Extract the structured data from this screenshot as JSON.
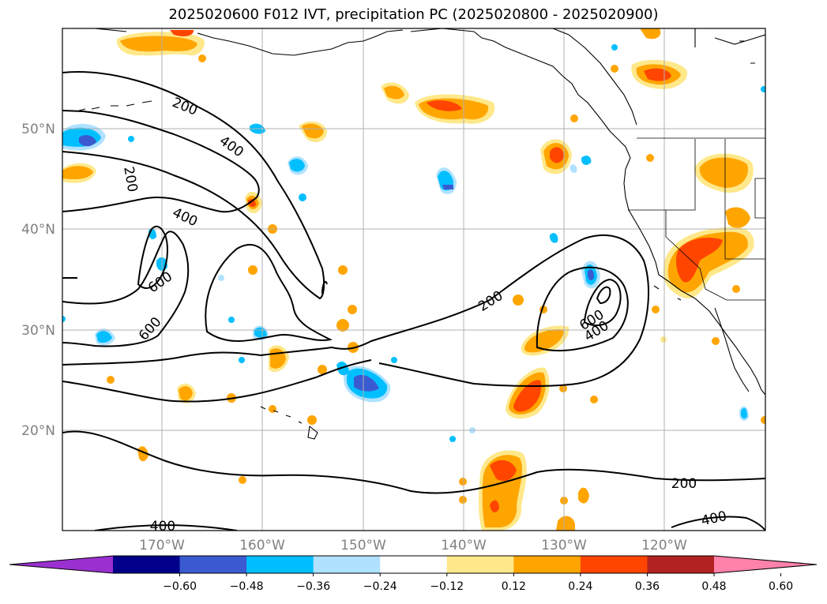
{
  "title": "2025020600 F012 IVT, precipitation PC (2025020800 - 2025020900)",
  "lat_labels": [
    "50°N",
    "40°N",
    "30°N",
    "20°N"
  ],
  "lon_labels": [
    "170°W",
    "160°W",
    "150°W",
    "140°W",
    "130°W",
    "120°W"
  ],
  "ivt_labels": [
    "200",
    "400",
    "600"
  ],
  "colorbar": {
    "ticks": [
      "−0.60",
      "−0.48",
      "−0.36",
      "−0.24",
      "−0.12",
      "0.12",
      "0.24",
      "0.36",
      "0.48",
      "0.60"
    ],
    "colors": [
      "#9b30d0",
      "#00008b",
      "#3a5bd0",
      "#00bfff",
      "#b0e2ff",
      "#ffffff",
      "#ffe88a",
      "#ffa500",
      "#ff4500",
      "#b22222",
      "#ff82aa"
    ]
  }
}
